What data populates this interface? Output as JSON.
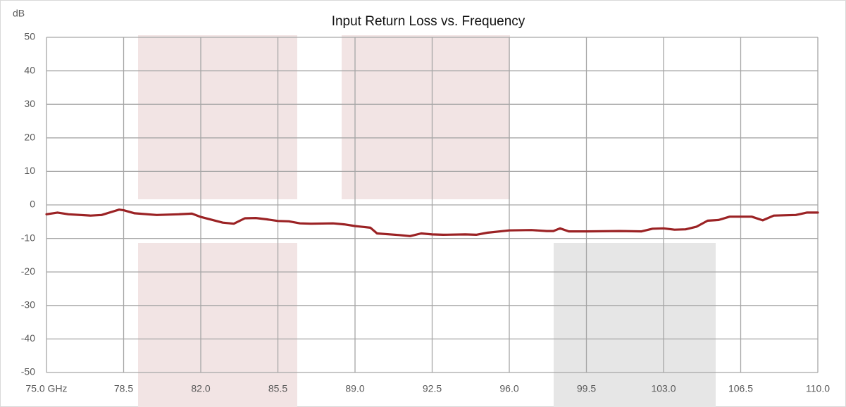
{
  "chart_data": {
    "type": "line",
    "title": "Input Return Loss vs. Frequency",
    "y_label": "dB",
    "x": [
      75.0,
      75.5,
      76,
      77,
      77.5,
      78,
      78.3,
      78.5,
      79,
      80,
      81,
      81.6,
      82,
      83,
      83.5,
      84,
      84.5,
      85,
      85.5,
      86,
      86.5,
      87,
      88,
      88.5,
      89,
      89.7,
      90,
      91,
      91.5,
      92,
      92.5,
      93,
      94,
      94.5,
      95,
      96,
      97,
      97.7,
      98,
      98.3,
      98.7,
      99.5,
      101,
      102,
      102.5,
      103,
      103.5,
      104,
      104.5,
      105,
      105.5,
      106,
      107,
      107.5,
      108,
      109,
      109.5,
      110
    ],
    "series": [
      {
        "name": "Input Return Loss",
        "color": "#9b2224",
        "values": [
          -2.8,
          -2.3,
          -2.8,
          -3.2,
          -3.0,
          -2.0,
          -1.4,
          -1.6,
          -2.5,
          -3.0,
          -2.8,
          -2.6,
          -3.6,
          -5.3,
          -5.6,
          -4.0,
          -3.9,
          -4.3,
          -4.8,
          -4.9,
          -5.5,
          -5.6,
          -5.5,
          -5.8,
          -6.3,
          -6.8,
          -8.5,
          -9.0,
          -9.3,
          -8.5,
          -8.8,
          -8.9,
          -8.8,
          -8.9,
          -8.3,
          -7.6,
          -7.5,
          -7.8,
          -7.8,
          -7.0,
          -7.9,
          -7.9,
          -7.8,
          -7.9,
          -7.1,
          -7.0,
          -7.4,
          -7.3,
          -6.5,
          -4.7,
          -4.5,
          -3.5,
          -3.5,
          -4.6,
          -3.2,
          -3.0,
          -2.3,
          -2.3
        ]
      }
    ],
    "xlim": [
      75,
      110
    ],
    "xticks": [
      {
        "value": 75,
        "label": "75.0 GHz"
      },
      78.5,
      {
        "value": 82,
        "label": "82.0"
      },
      85.5,
      {
        "value": 89,
        "label": "89.0"
      },
      92.5,
      {
        "value": 96,
        "label": "96.0"
      },
      99.5,
      {
        "value": 103,
        "label": "103.0"
      },
      106.5,
      {
        "value": 110,
        "label": "110.0"
      }
    ],
    "ylim": [
      -50,
      50
    ],
    "yticks": [
      -50,
      -40,
      -30,
      -20,
      -10,
      0,
      10,
      20,
      30,
      40,
      50
    ],
    "grid": true
  }
}
